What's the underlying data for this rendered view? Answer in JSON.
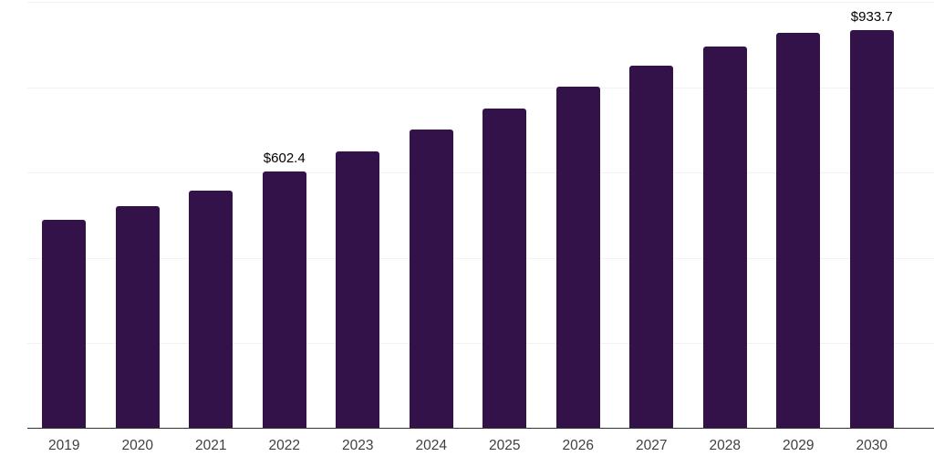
{
  "chart_data": {
    "type": "bar",
    "title": "",
    "xlabel": "",
    "ylabel": "",
    "categories": [
      "2019",
      "2020",
      "2021",
      "2022",
      "2023",
      "2024",
      "2025",
      "2026",
      "2027",
      "2028",
      "2029",
      "2030"
    ],
    "values": [
      490,
      522,
      558,
      602.4,
      650,
      701,
      750,
      802,
      851,
      895,
      928,
      933.7
    ],
    "data_labels": [
      "",
      "",
      "",
      "$602.4",
      "",
      "",
      "",
      "",
      "",
      "",
      "",
      "$933.7"
    ],
    "ylim": [
      0,
      1000
    ],
    "gridline_step": 200,
    "grid": true,
    "legend": "none",
    "colors": {
      "bar": "#331249",
      "axis_line": "#333333",
      "gridline": "#f2f2f2",
      "tick_label": "#404040",
      "data_label": "#000000",
      "background": "#ffffff"
    }
  }
}
